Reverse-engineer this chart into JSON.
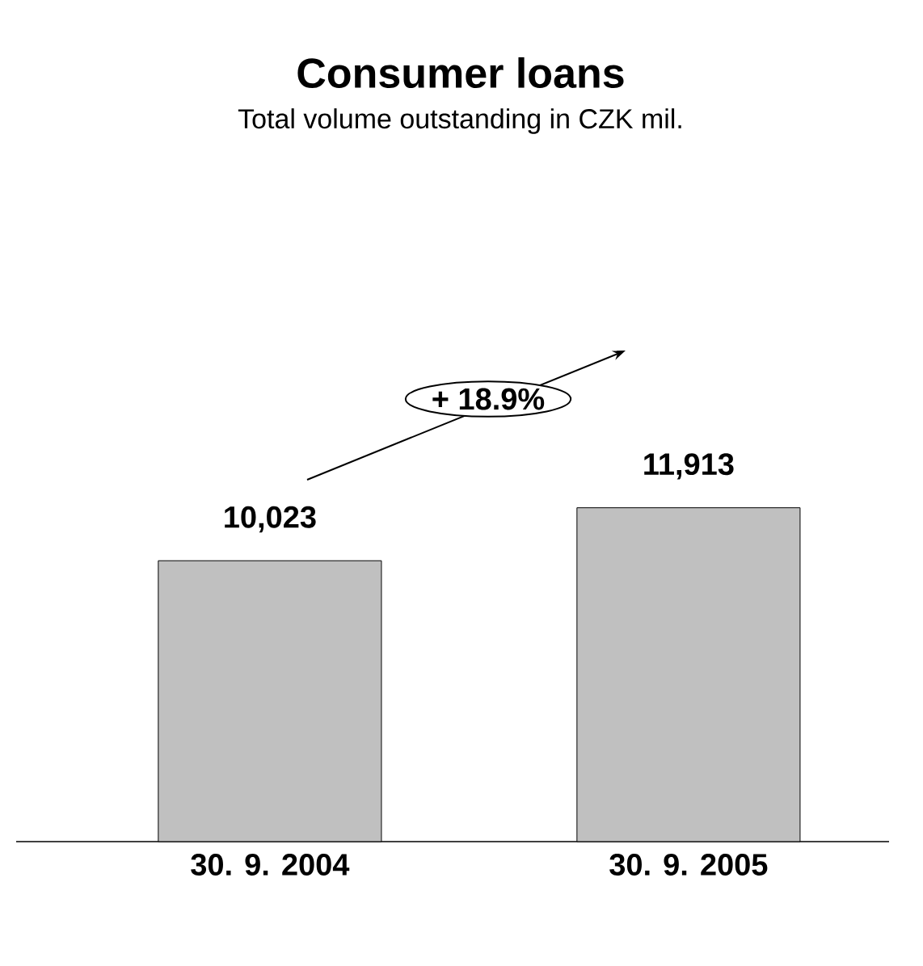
{
  "chart_data": {
    "type": "bar",
    "title": "Consumer loans",
    "subtitle": "Total volume outstanding in CZK mil.",
    "categories": [
      "30. 9. 2004",
      "30. 9. 2005"
    ],
    "values": [
      10023,
      11913
    ],
    "value_labels": [
      "10,023",
      "11,913"
    ],
    "color": "#c0c0c0",
    "annotations": [
      "+ 18.9%"
    ]
  }
}
